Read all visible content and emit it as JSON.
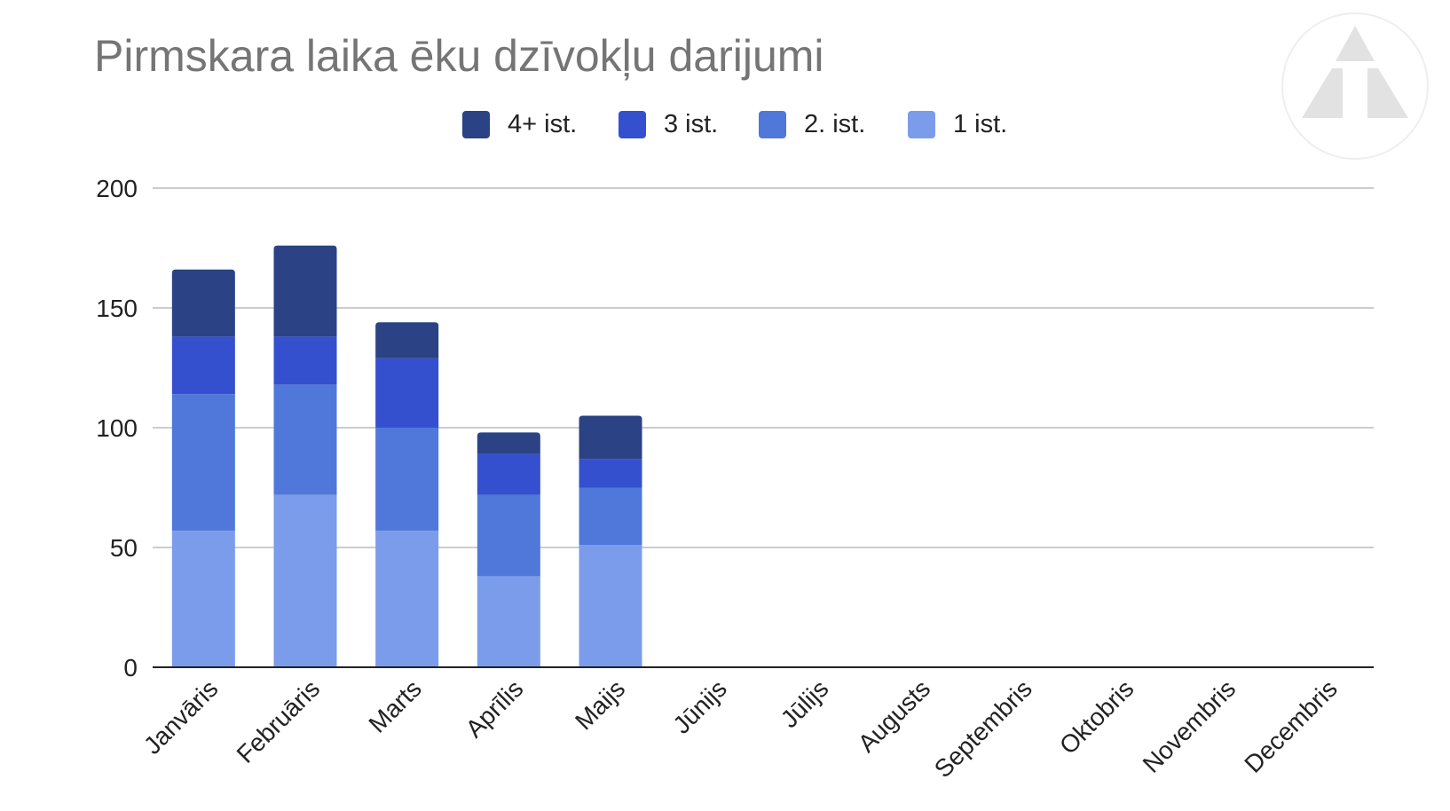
{
  "chart_data": {
    "type": "bar",
    "stacked": true,
    "title": "Pirmskara laika ēku dzīvokļu darijumi",
    "xlabel": "",
    "ylabel": "",
    "ylim": [
      0,
      200
    ],
    "yticks": [
      "0",
      "50",
      "100",
      "150",
      "200"
    ],
    "grid": true,
    "legend_position": "top",
    "categories": [
      "Janvāris",
      "Februāris",
      "Marts",
      "Aprīlis",
      "Maijs",
      "Jūnijs",
      "Jūlijs",
      "Augusts",
      "Septembris",
      "Oktobris",
      "Novembris",
      "Decembris"
    ],
    "series": [
      {
        "name": "1 ist.",
        "color": "#7b9cea",
        "values": [
          57,
          72,
          57,
          38,
          51,
          null,
          null,
          null,
          null,
          null,
          null,
          null
        ]
      },
      {
        "name": "2. ist.",
        "color": "#4f78da",
        "values": [
          57,
          46,
          43,
          34,
          24,
          null,
          null,
          null,
          null,
          null,
          null,
          null
        ]
      },
      {
        "name": "3 ist.",
        "color": "#3550ce",
        "values": [
          24,
          20,
          29,
          17,
          12,
          null,
          null,
          null,
          null,
          null,
          null,
          null
        ]
      },
      {
        "name": "4+ ist.",
        "color": "#2b4384",
        "values": [
          28,
          38,
          15,
          9,
          18,
          null,
          null,
          null,
          null,
          null,
          null,
          null
        ]
      }
    ],
    "legend_order": [
      "4+ ist.",
      "3 ist.",
      "2. ist.",
      "1 ist."
    ]
  },
  "logo": {
    "icon": "triangle-logo-icon"
  }
}
